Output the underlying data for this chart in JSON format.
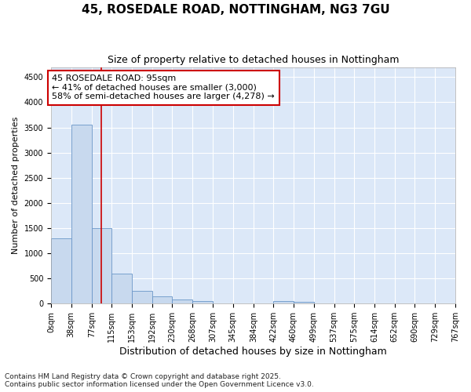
{
  "title1": "45, ROSEDALE ROAD, NOTTINGHAM, NG3 7GU",
  "title2": "Size of property relative to detached houses in Nottingham",
  "xlabel": "Distribution of detached houses by size in Nottingham",
  "ylabel": "Number of detached properties",
  "bin_edges": [
    0,
    38,
    77,
    115,
    153,
    192,
    230,
    268,
    307,
    345,
    384,
    422,
    460,
    499,
    537,
    575,
    614,
    652,
    690,
    729,
    767
  ],
  "bin_labels": [
    "0sqm",
    "38sqm",
    "77sqm",
    "115sqm",
    "153sqm",
    "192sqm",
    "230sqm",
    "268sqm",
    "307sqm",
    "345sqm",
    "384sqm",
    "422sqm",
    "460sqm",
    "499sqm",
    "537sqm",
    "575sqm",
    "614sqm",
    "652sqm",
    "690sqm",
    "729sqm",
    "767sqm"
  ],
  "bar_heights": [
    1300,
    3550,
    1500,
    600,
    250,
    150,
    80,
    50,
    0,
    0,
    0,
    50,
    30,
    0,
    0,
    0,
    0,
    0,
    0,
    0
  ],
  "bar_color": "#c8d9ee",
  "bar_edge_color": "#6a96c8",
  "red_line_x": 95,
  "ylim_max": 4700,
  "yticks": [
    0,
    500,
    1000,
    1500,
    2000,
    2500,
    3000,
    3500,
    4000,
    4500
  ],
  "annotation_title": "45 ROSEDALE ROAD: 95sqm",
  "annotation_line1": "← 41% of detached houses are smaller (3,000)",
  "annotation_line2": "58% of semi-detached houses are larger (4,278) →",
  "annotation_box_facecolor": "#ffffff",
  "annotation_box_edgecolor": "#cc0000",
  "footnote1": "Contains HM Land Registry data © Crown copyright and database right 2025.",
  "footnote2": "Contains public sector information licensed under the Open Government Licence v3.0.",
  "fig_facecolor": "#ffffff",
  "plot_bg_color": "#dce8f8",
  "grid_color": "#ffffff",
  "title1_fontsize": 11,
  "title2_fontsize": 9,
  "ylabel_fontsize": 8,
  "xlabel_fontsize": 9,
  "tick_fontsize": 7,
  "annotation_fontsize": 8,
  "footnote_fontsize": 6.5
}
